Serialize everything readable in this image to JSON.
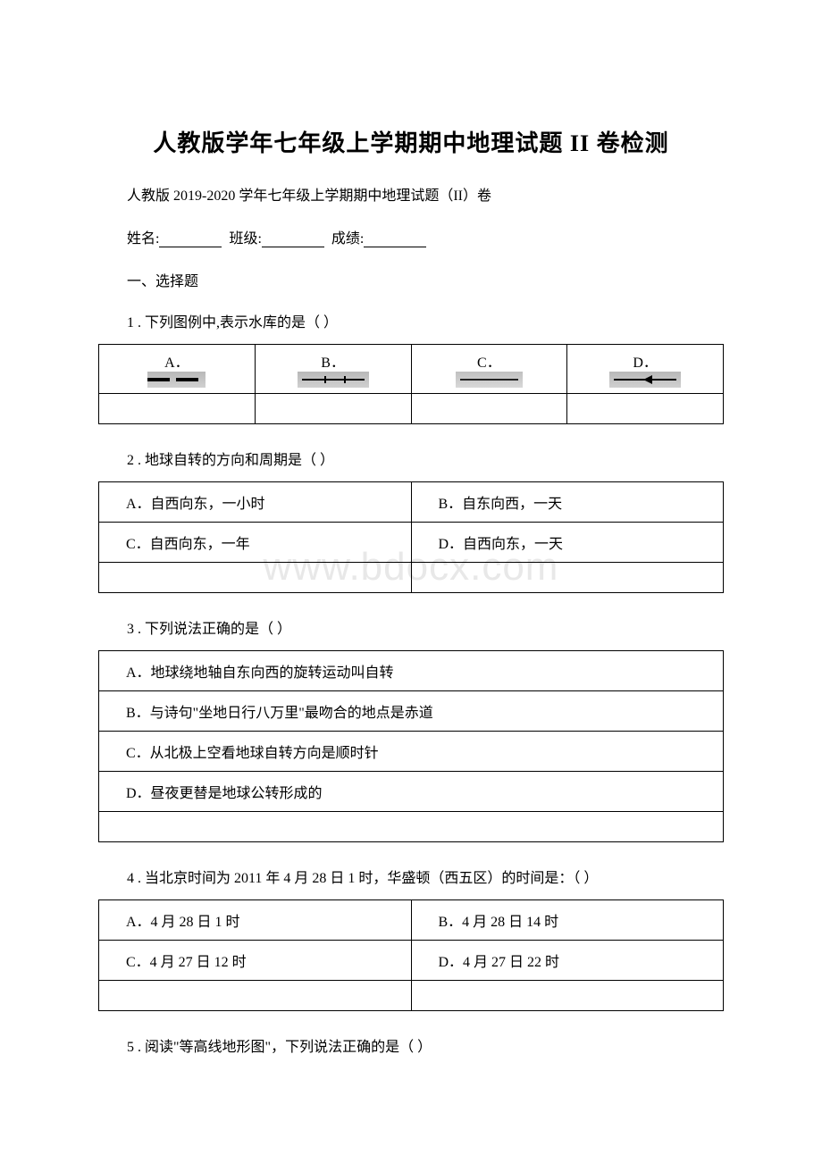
{
  "title": "人教版学年七年级上学期期中地理试题 II 卷检测",
  "subtitle": "人教版 2019-2020 学年七年级上学期期中地理试题（II）卷",
  "info": {
    "name_label": "姓名:",
    "class_label": "班级:",
    "score_label": "成绩:"
  },
  "section1_header": "一、选择题",
  "q1": {
    "text": "1 . 下列图例中,表示水库的是（ ）",
    "options": {
      "a": "A．",
      "b": "B．",
      "c": "C．",
      "d": "D．"
    }
  },
  "q2": {
    "text": "2 . 地球自转的方向和周期是（ ）",
    "options": {
      "a": "A．自西向东，一小时",
      "b": "B．自东向西，一天",
      "c": "C．自西向东，一年",
      "d": "D．自西向东，一天"
    }
  },
  "q3": {
    "text": "3 . 下列说法正确的是（ ）",
    "options": {
      "a": "A．地球绕地轴自东向西的旋转运动叫自转",
      "b": "B．与诗句\"坐地日行八万里\"最吻合的地点是赤道",
      "c": "C．从北极上空看地球自转方向是顺时针",
      "d": "D．昼夜更替是地球公转形成的"
    }
  },
  "q4": {
    "text": "4 . 当北京时间为 2011 年 4 月 28 日 1 时，华盛顿（西五区）的时间是：（ ）",
    "options": {
      "a": "A．4 月 28 日 1 时",
      "b": "B．4 月 28 日 14 时",
      "c": "C．4 月 27 日 12 时",
      "d": "D．4 月 27 日 22 时"
    }
  },
  "q5": {
    "text": "5 . 阅读\"等高线地形图\"，下列说法正确的是（ ）"
  }
}
